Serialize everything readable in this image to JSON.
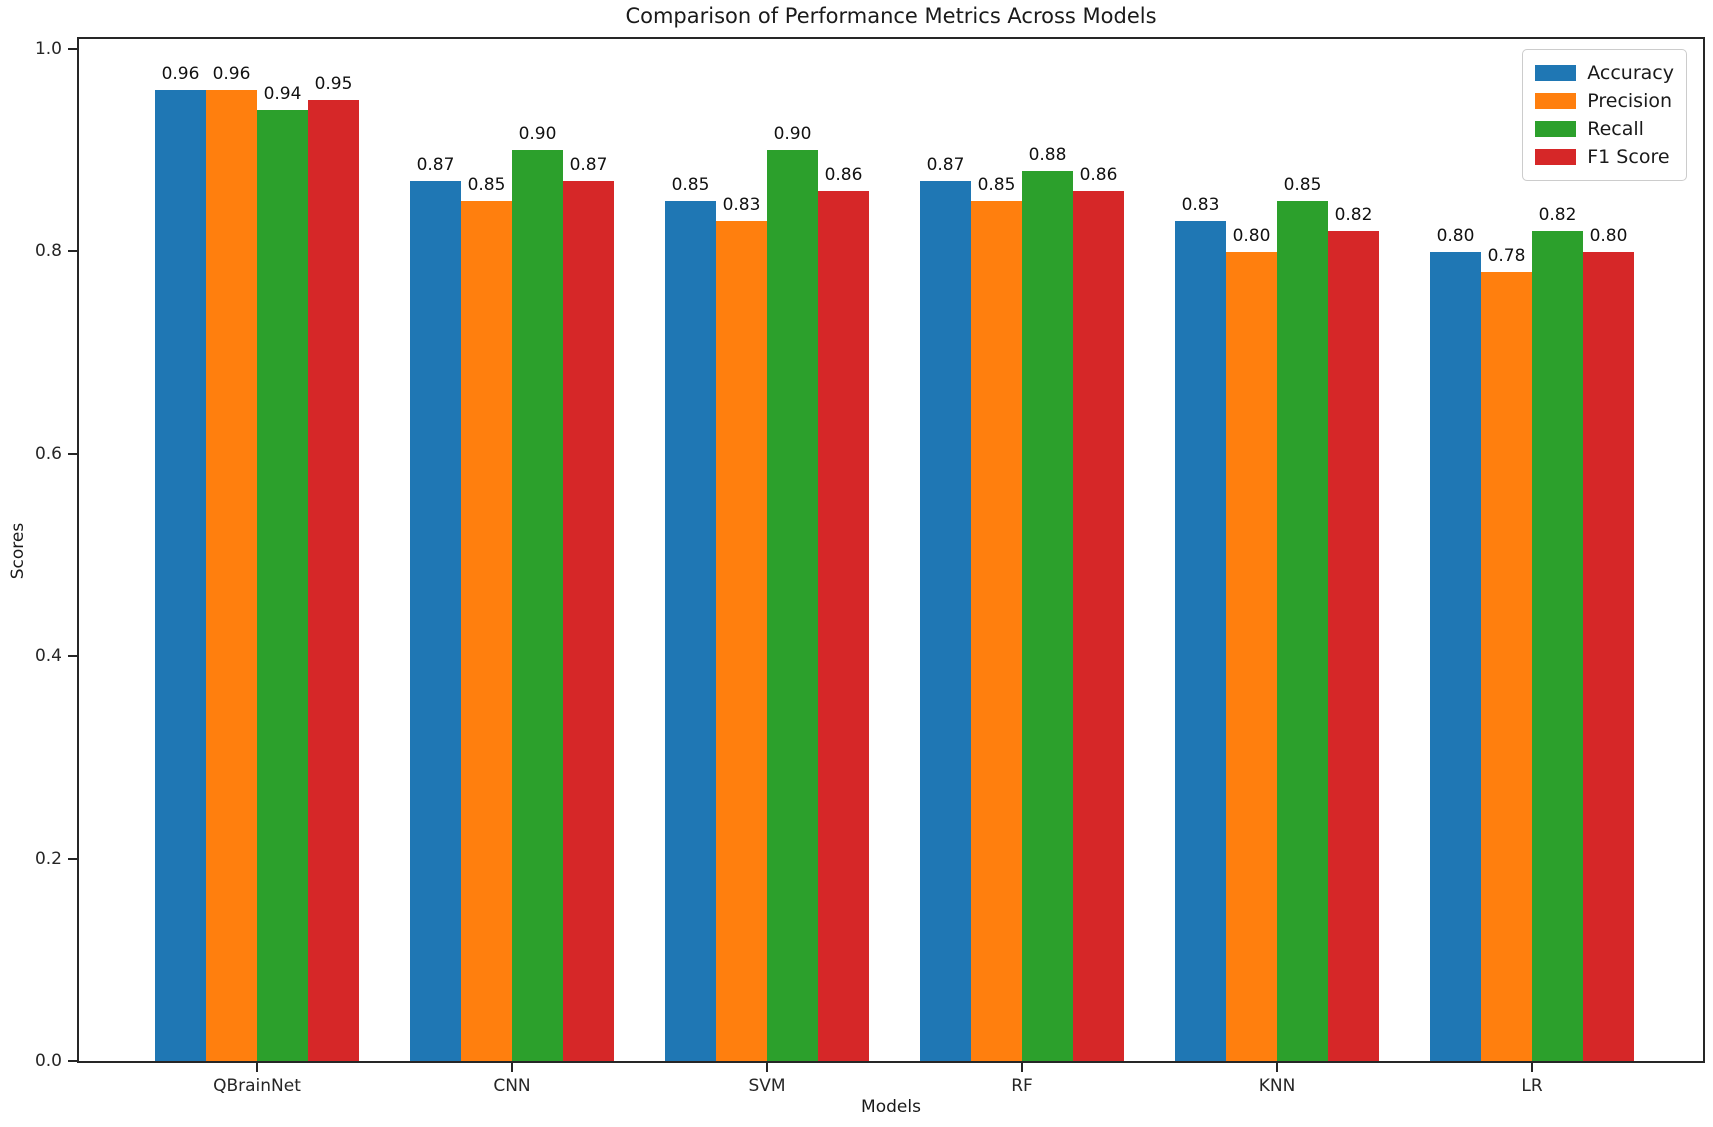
{
  "chart_data": {
    "type": "bar",
    "title": "Comparison of Performance Metrics Across Models",
    "xlabel": "Models",
    "ylabel": "Scores",
    "categories": [
      "QBrainNet",
      "CNN",
      "SVM",
      "RF",
      "KNN",
      "LR"
    ],
    "series": [
      {
        "name": "Accuracy",
        "color": "#1f77b4",
        "values": [
          0.96,
          0.87,
          0.85,
          0.87,
          0.83,
          0.8
        ]
      },
      {
        "name": "Precision",
        "color": "#ff7f0e",
        "values": [
          0.96,
          0.85,
          0.83,
          0.85,
          0.8,
          0.78
        ]
      },
      {
        "name": "Recall",
        "color": "#2ca02c",
        "values": [
          0.94,
          0.9,
          0.9,
          0.88,
          0.85,
          0.82
        ]
      },
      {
        "name": "F1 Score",
        "color": "#d62728",
        "values": [
          0.95,
          0.87,
          0.86,
          0.86,
          0.82,
          0.8
        ]
      }
    ],
    "ylim": [
      0.0,
      1.01
    ],
    "yticks": [
      0.0,
      0.2,
      0.4,
      0.6,
      0.8,
      1.0
    ],
    "ytick_format": "%.1f",
    "bar_label_format": "%.2f",
    "grid": false,
    "legend_position": "upper right",
    "background_color": "#ffffff",
    "spine_color": "#262626"
  }
}
